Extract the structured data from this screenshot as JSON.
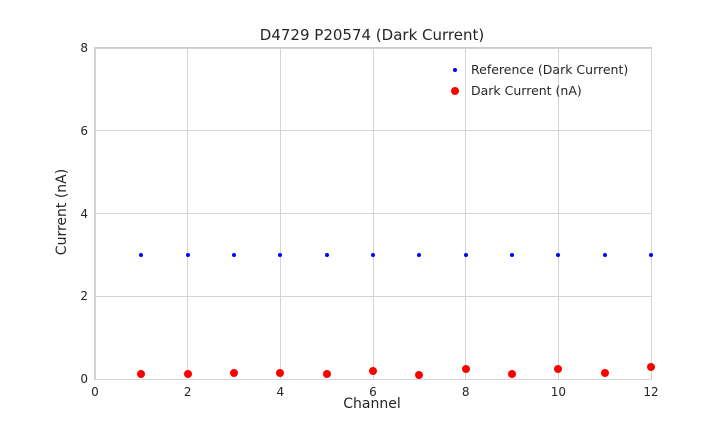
{
  "figure": {
    "title": "D4729 P20574 (Dark Current)",
    "xlabel": "Channel",
    "ylabel": "Current (nA)"
  },
  "chart_data": {
    "type": "scatter",
    "title": "D4729 P20574 (Dark Current)",
    "xlabel": "Channel",
    "ylabel": "Current (nA)",
    "xlim": [
      0,
      12
    ],
    "ylim": [
      0,
      8
    ],
    "xticks": [
      0,
      2,
      4,
      6,
      8,
      10,
      12
    ],
    "yticks": [
      0,
      2,
      4,
      6,
      8
    ],
    "grid": true,
    "legend_position": "upper right",
    "x": [
      1,
      2,
      3,
      4,
      5,
      6,
      7,
      8,
      9,
      10,
      11,
      12
    ],
    "series": [
      {
        "name": "Reference (Dark Current)",
        "color": "#0000ff",
        "marker_size": 4,
        "values": [
          3,
          3,
          3,
          3,
          3,
          3,
          3,
          3,
          3,
          3,
          3,
          3
        ]
      },
      {
        "name": "Dark Current (nA)",
        "color": "#ff0000",
        "marker_size": 8,
        "values": [
          0.12,
          0.12,
          0.15,
          0.15,
          0.12,
          0.2,
          0.1,
          0.25,
          0.12,
          0.25,
          0.15,
          0.28
        ]
      }
    ],
    "colors": {
      "grid": "#d4d4d4",
      "spine": "#cccccc",
      "text": "#262626",
      "background": "#ffffff"
    }
  }
}
